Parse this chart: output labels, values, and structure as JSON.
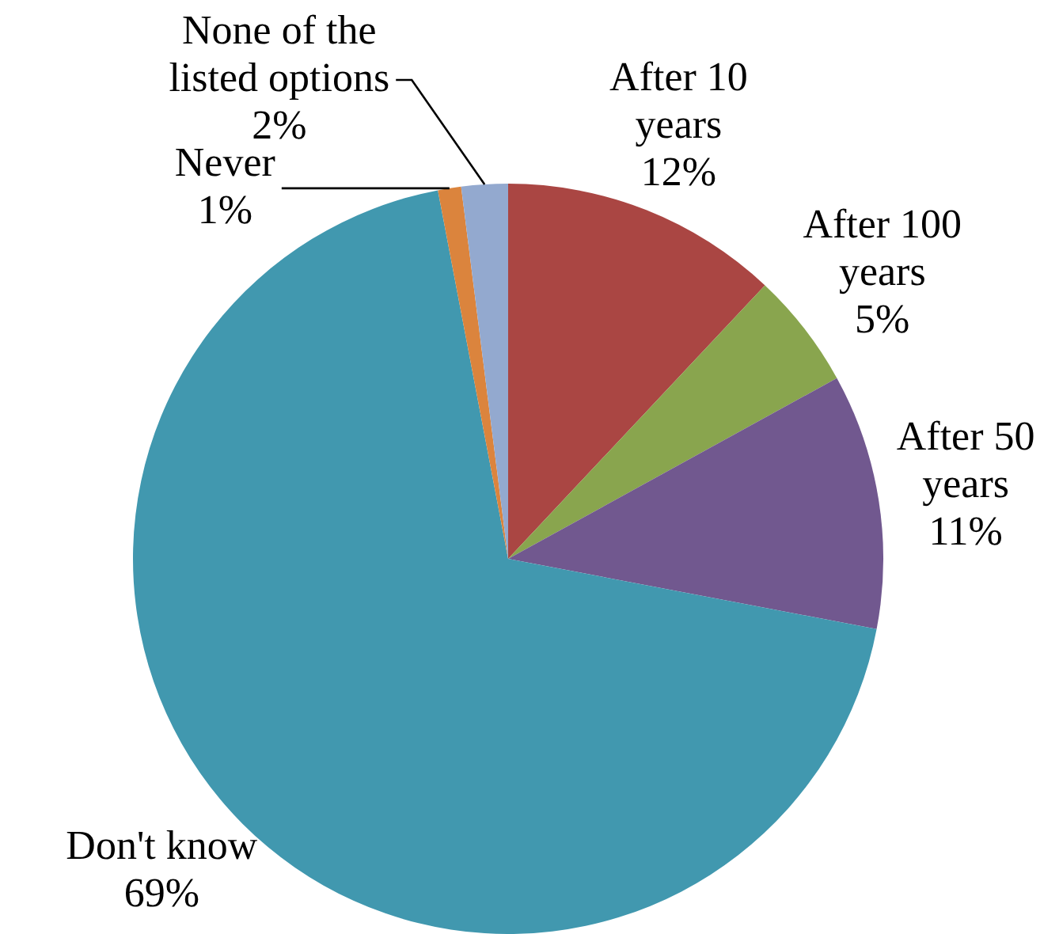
{
  "chart_data": {
    "type": "pie",
    "categories": [
      "After 10 years",
      "After 100 years",
      "After 50 years",
      "Don't know",
      "Never",
      "None of the listed options"
    ],
    "values": [
      12,
      5,
      11,
      69,
      1,
      2
    ],
    "colors": [
      "#aa4643",
      "#89a54e",
      "#71588f",
      "#4198af",
      "#db843d",
      "#93a9cf"
    ],
    "value_labels": [
      "12%",
      "5%",
      "11%",
      "69%",
      "1%",
      "2%"
    ]
  }
}
